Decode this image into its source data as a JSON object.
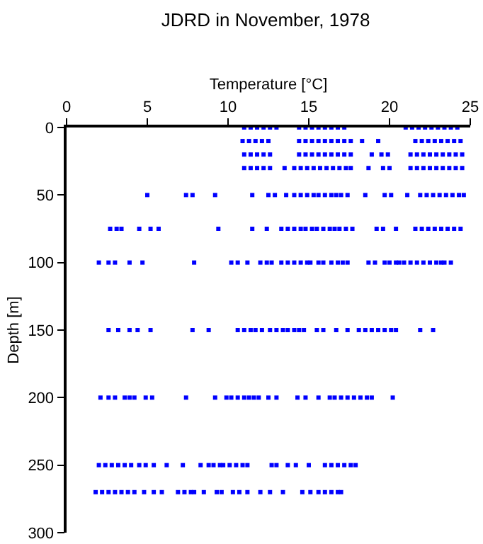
{
  "chart_data": {
    "type": "scatter",
    "title": "JDRD in November, 1978",
    "xlabel": "Temperature [°C]",
    "ylabel": "Depth [m]",
    "xlim": [
      0,
      25
    ],
    "xticks": [
      0,
      5,
      10,
      15,
      20,
      25
    ],
    "ylim": [
      300,
      0
    ],
    "yticks": [
      0,
      50,
      100,
      150,
      200,
      250,
      300
    ],
    "grid": false,
    "marker": "square",
    "series": [
      {
        "color": "#0000ff",
        "x": [
          11,
          11.4,
          11.8,
          12.2,
          12.6,
          13.0,
          14.4,
          14.8,
          15.2,
          15.6,
          16.0,
          16.4,
          16.8,
          17.2,
          21.0,
          21.4,
          21.8,
          22.2,
          22.6,
          23.0,
          23.4,
          23.8,
          24.2
        ],
        "values": [
          0,
          0,
          0,
          0,
          0,
          0,
          0,
          0,
          0,
          0,
          0,
          0,
          0,
          0,
          0,
          0,
          0,
          0,
          0,
          0,
          0,
          0,
          0
        ]
      },
      {
        "color": "#0000ff",
        "x": [
          10.9,
          11.3,
          11.7,
          12.1,
          12.5,
          14.4,
          14.8,
          15.2,
          15.6,
          16.0,
          16.4,
          16.8,
          17.2,
          17.6,
          18.3,
          19.3,
          21.6,
          22.0,
          22.4,
          22.8,
          23.2,
          23.6,
          24.0,
          24.4
        ],
        "values": [
          10,
          10,
          10,
          10,
          10,
          10,
          10,
          10,
          10,
          10,
          10,
          10,
          10,
          10,
          10,
          10,
          10,
          10,
          10,
          10,
          10,
          10,
          10,
          10
        ]
      },
      {
        "color": "#0000ff",
        "x": [
          11.0,
          11.4,
          11.8,
          12.2,
          12.6,
          14.4,
          14.8,
          15.2,
          15.6,
          16.0,
          16.4,
          16.8,
          17.2,
          17.6,
          18.9,
          19.5,
          19.9,
          21.3,
          21.7,
          22.1,
          22.5,
          22.9,
          23.3,
          23.7,
          24.1,
          24.5
        ],
        "values": [
          20,
          20,
          20,
          20,
          20,
          20,
          20,
          20,
          20,
          20,
          20,
          20,
          20,
          20,
          20,
          20,
          20,
          20,
          20,
          20,
          20,
          20,
          20,
          20,
          20,
          20
        ]
      },
      {
        "color": "#0000ff",
        "x": [
          11.0,
          11.4,
          11.8,
          12.2,
          12.6,
          13.5,
          14.1,
          14.5,
          14.9,
          15.3,
          15.7,
          16.1,
          16.5,
          16.9,
          17.3,
          17.6,
          18.7,
          19.6,
          20.0,
          21.3,
          21.7,
          22.1,
          22.5,
          22.9,
          23.3,
          23.7,
          24.1,
          24.5
        ],
        "values": [
          30,
          30,
          30,
          30,
          30,
          30,
          30,
          30,
          30,
          30,
          30,
          30,
          30,
          30,
          30,
          30,
          30,
          30,
          30,
          30,
          30,
          30,
          30,
          30,
          30,
          30,
          30,
          30
        ]
      },
      {
        "color": "#0000ff",
        "x": [
          5.0,
          7.4,
          7.8,
          9.2,
          11.5,
          12.5,
          12.9,
          13.6,
          14.1,
          14.5,
          14.9,
          15.3,
          15.6,
          16.0,
          16.4,
          16.7,
          17.0,
          17.4,
          18.5,
          19.7,
          20.1,
          21.1,
          21.9,
          22.3,
          22.7,
          23.1,
          23.5,
          23.9,
          24.3,
          24.6
        ],
        "values": [
          50,
          50,
          50,
          50,
          50,
          50,
          50,
          50,
          50,
          50,
          50,
          50,
          50,
          50,
          50,
          50,
          50,
          50,
          50,
          50,
          50,
          50,
          50,
          50,
          50,
          50,
          50,
          50,
          50,
          50
        ]
      },
      {
        "color": "#0000ff",
        "x": [
          2.7,
          3.1,
          3.4,
          4.5,
          5.2,
          5.7,
          9.4,
          11.5,
          12.4,
          13.3,
          13.7,
          14.1,
          14.5,
          14.8,
          15.2,
          15.5,
          15.9,
          16.3,
          16.6,
          16.9,
          17.3,
          17.7,
          19.2,
          19.6,
          20.4,
          21.6,
          22.0,
          22.4,
          22.8,
          23.2,
          23.6,
          24.0,
          24.4
        ],
        "values": [
          75,
          75,
          75,
          75,
          75,
          75,
          75,
          75,
          75,
          75,
          75,
          75,
          75,
          75,
          75,
          75,
          75,
          75,
          75,
          75,
          75,
          75,
          75,
          75,
          75,
          75,
          75,
          75,
          75,
          75,
          75,
          75,
          75
        ]
      },
      {
        "color": "#0000ff",
        "x": [
          2.0,
          2.6,
          3.0,
          3.9,
          4.7,
          7.9,
          10.2,
          10.6,
          11.2,
          12.0,
          12.4,
          12.7,
          13.3,
          13.7,
          14.1,
          14.5,
          14.9,
          15.1,
          15.6,
          15.9,
          16.4,
          16.8,
          17.1,
          17.4,
          18.7,
          19.1,
          19.7,
          20.0,
          20.4,
          20.6,
          20.9,
          21.3,
          21.7,
          22.1,
          22.5,
          22.9,
          23.2,
          23.4,
          23.8
        ],
        "values": [
          100,
          100,
          100,
          100,
          100,
          100,
          100,
          100,
          100,
          100,
          100,
          100,
          100,
          100,
          100,
          100,
          100,
          100,
          100,
          100,
          100,
          100,
          100,
          100,
          100,
          100,
          100,
          100,
          100,
          100,
          100,
          100,
          100,
          100,
          100,
          100,
          100,
          100,
          100
        ]
      },
      {
        "color": "#0000ff",
        "x": [
          2.6,
          3.2,
          3.9,
          4.4,
          5.2,
          7.8,
          8.8,
          10.6,
          11.0,
          11.4,
          11.7,
          12.1,
          12.6,
          13.0,
          13.4,
          13.7,
          14.1,
          14.4,
          14.7,
          15.5,
          15.9,
          16.7,
          17.4,
          18.1,
          18.5,
          18.9,
          19.3,
          19.7,
          20.1,
          20.4,
          21.9,
          22.7
        ],
        "values": [
          150,
          150,
          150,
          150,
          150,
          150,
          150,
          150,
          150,
          150,
          150,
          150,
          150,
          150,
          150,
          150,
          150,
          150,
          150,
          150,
          150,
          150,
          150,
          150,
          150,
          150,
          150,
          150,
          150,
          150,
          150,
          150
        ]
      },
      {
        "color": "#0000ff",
        "x": [
          2.1,
          2.6,
          3.0,
          3.6,
          3.9,
          4.2,
          4.9,
          5.3,
          7.4,
          9.2,
          9.9,
          10.2,
          10.6,
          11.0,
          11.3,
          11.6,
          11.9,
          12.5,
          13.0,
          14.3,
          14.8,
          15.6,
          16.3,
          16.6,
          17.0,
          17.4,
          17.8,
          18.2,
          18.6,
          18.9,
          20.2
        ],
        "values": [
          200,
          200,
          200,
          200,
          200,
          200,
          200,
          200,
          200,
          200,
          200,
          200,
          200,
          200,
          200,
          200,
          200,
          200,
          200,
          200,
          200,
          200,
          200,
          200,
          200,
          200,
          200,
          200,
          200,
          200,
          200
        ]
      },
      {
        "color": "#0000ff",
        "x": [
          2.0,
          2.4,
          2.8,
          3.2,
          3.6,
          4.0,
          4.5,
          4.9,
          5.4,
          6.2,
          7.2,
          8.3,
          8.8,
          9.1,
          9.5,
          9.7,
          10.1,
          10.5,
          10.9,
          11.2,
          12.7,
          13.0,
          13.7,
          14.2,
          15.0,
          16.0,
          16.4,
          16.8,
          17.2,
          17.6,
          17.9
        ],
        "values": [
          250,
          250,
          250,
          250,
          250,
          250,
          250,
          250,
          250,
          250,
          250,
          250,
          250,
          250,
          250,
          250,
          250,
          250,
          250,
          250,
          250,
          250,
          250,
          250,
          250,
          250,
          250,
          250,
          250,
          250,
          250
        ]
      },
      {
        "color": "#0000ff",
        "x": [
          1.8,
          2.2,
          2.6,
          3.0,
          3.4,
          3.8,
          4.2,
          4.8,
          5.4,
          5.9,
          6.9,
          7.3,
          7.7,
          7.9,
          8.5,
          9.3,
          9.6,
          10.3,
          10.7,
          11.2,
          12.0,
          12.6,
          13.4,
          14.6,
          15.1,
          15.6,
          16.0,
          16.4,
          16.8,
          17.0
        ],
        "values": [
          270,
          270,
          270,
          270,
          270,
          270,
          270,
          270,
          270,
          270,
          270,
          270,
          270,
          270,
          270,
          270,
          270,
          270,
          270,
          270,
          270,
          270,
          270,
          270,
          270,
          270,
          270,
          270,
          270,
          270
        ]
      }
    ]
  }
}
